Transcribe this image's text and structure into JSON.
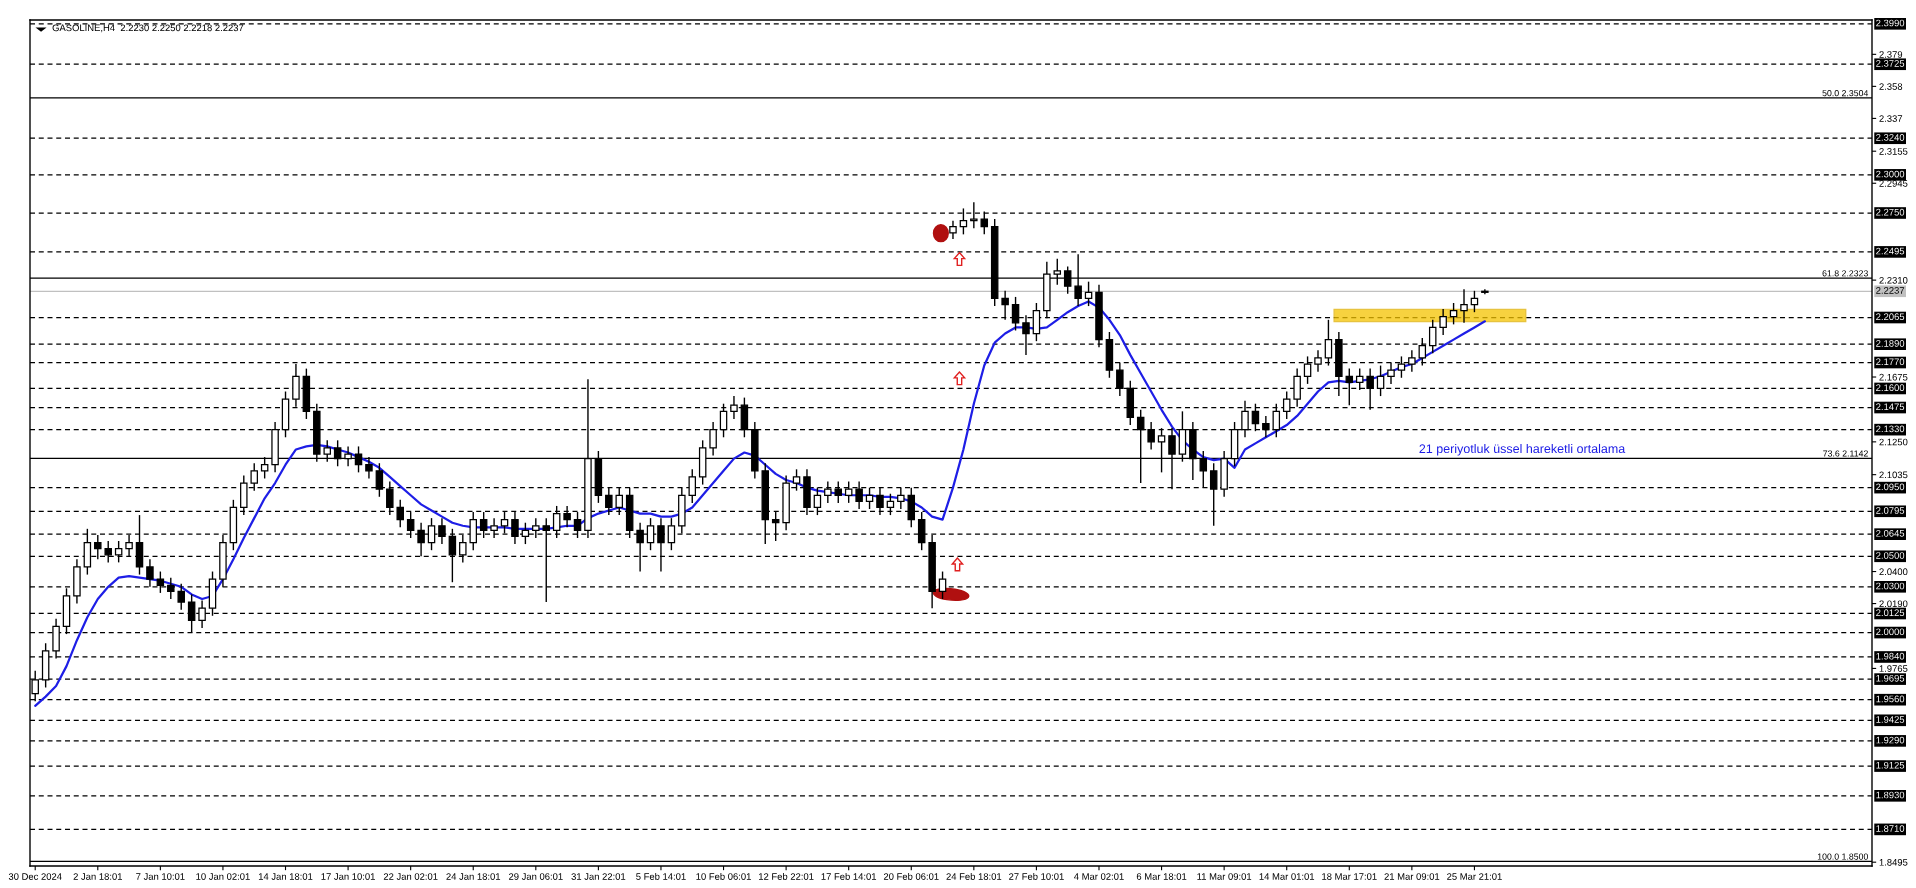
{
  "chart_data": {
    "type": "candlestick",
    "title": "GASOLINE,H4  2.2230 2.2250 2.2218 2.2237",
    "categories": [
      "30 Dec 2024",
      null,
      null,
      null,
      null,
      null,
      "2 Jan 18:01",
      null,
      null,
      null,
      null,
      null,
      "7 Jan 10:01",
      null,
      null,
      null,
      null,
      null,
      "10 Jan 02:01",
      null,
      null,
      null,
      null,
      null,
      "14 Jan 18:01",
      null,
      null,
      null,
      null,
      null,
      "17 Jan 10:01",
      null,
      null,
      null,
      null,
      null,
      "22 Jan 02:01",
      null,
      null,
      null,
      null,
      null,
      "24 Jan 18:01",
      null,
      null,
      null,
      null,
      null,
      "29 Jan 06:01",
      null,
      null,
      null,
      null,
      null,
      "31 Jan 22:01",
      null,
      null,
      null,
      null,
      null,
      "5 Feb 14:01",
      null,
      null,
      null,
      null,
      null,
      "10 Feb 06:01",
      null,
      null,
      null,
      null,
      null,
      "12 Feb 22:01",
      null,
      null,
      null,
      null,
      null,
      "17 Feb 14:01",
      null,
      null,
      null,
      null,
      null,
      "20 Feb 06:01",
      null,
      null,
      null,
      null,
      null,
      "24 Feb 18:01",
      null,
      null,
      null,
      null,
      null,
      "27 Feb 10:01",
      null,
      null,
      null,
      null,
      null,
      "4 Mar 02:01",
      null,
      null,
      null,
      null,
      null,
      "6 Mar 18:01",
      null,
      null,
      null,
      null,
      null,
      "11 Mar 09:01",
      null,
      null,
      null,
      null,
      null,
      "14 Mar 01:01",
      null,
      null,
      null,
      null,
      null,
      "18 Mar 17:01",
      null,
      null,
      null,
      null,
      null,
      "21 Mar 09:01",
      null,
      null,
      null,
      null,
      null,
      "25 Mar 21:01",
      null
    ],
    "ohlc": [
      [
        1.96,
        1.975,
        1.955,
        1.969
      ],
      [
        1.969,
        1.993,
        1.964,
        1.988
      ],
      [
        1.988,
        2.009,
        1.983,
        2.004
      ],
      [
        2.004,
        2.029,
        1.999,
        2.024
      ],
      [
        2.024,
        2.048,
        2.019,
        2.043
      ],
      [
        2.043,
        2.068,
        2.038,
        2.059
      ],
      [
        2.059,
        2.064,
        2.048,
        2.055
      ],
      [
        2.055,
        2.06,
        2.046,
        2.051
      ],
      [
        2.051,
        2.06,
        2.046,
        2.055
      ],
      [
        2.055,
        2.064,
        2.05,
        2.059
      ],
      [
        2.059,
        2.077,
        2.038,
        2.043
      ],
      [
        2.043,
        2.048,
        2.03,
        2.035
      ],
      [
        2.035,
        2.04,
        2.026,
        2.031
      ],
      [
        2.031,
        2.036,
        2.022,
        2.027
      ],
      [
        2.027,
        2.032,
        2.015,
        2.02
      ],
      [
        2.02,
        2.025,
        2.0,
        2.008
      ],
      [
        2.008,
        2.021,
        2.003,
        2.016
      ],
      [
        2.016,
        2.04,
        2.011,
        2.035
      ],
      [
        2.035,
        2.064,
        2.03,
        2.059
      ],
      [
        2.059,
        2.087,
        2.054,
        2.082
      ],
      [
        2.082,
        2.103,
        2.077,
        2.098
      ],
      [
        2.098,
        2.111,
        2.093,
        2.106
      ],
      [
        2.106,
        2.115,
        2.101,
        2.11
      ],
      [
        2.11,
        2.138,
        2.105,
        2.133
      ],
      [
        2.133,
        2.158,
        2.128,
        2.153
      ],
      [
        2.153,
        2.176,
        2.148,
        2.168
      ],
      [
        2.168,
        2.173,
        2.14,
        2.145
      ],
      [
        2.145,
        2.15,
        2.112,
        2.117
      ],
      [
        2.117,
        2.126,
        2.112,
        2.121
      ],
      [
        2.121,
        2.126,
        2.109,
        2.114
      ],
      [
        2.114,
        2.122,
        2.109,
        2.117
      ],
      [
        2.117,
        2.122,
        2.105,
        2.11
      ],
      [
        2.11,
        2.115,
        2.101,
        2.106
      ],
      [
        2.106,
        2.111,
        2.089,
        2.094
      ],
      [
        2.094,
        2.099,
        2.077,
        2.082
      ],
      [
        2.082,
        2.087,
        2.069,
        2.074
      ],
      [
        2.074,
        2.079,
        2.062,
        2.067
      ],
      [
        2.067,
        2.072,
        2.05,
        2.059
      ],
      [
        2.059,
        2.075,
        2.054,
        2.07
      ],
      [
        2.07,
        2.075,
        2.058,
        2.063
      ],
      [
        2.063,
        2.068,
        2.033,
        2.051
      ],
      [
        2.051,
        2.064,
        2.046,
        2.059
      ],
      [
        2.059,
        2.079,
        2.054,
        2.074
      ],
      [
        2.074,
        2.079,
        2.062,
        2.067
      ],
      [
        2.067,
        2.075,
        2.062,
        2.07
      ],
      [
        2.07,
        2.079,
        2.065,
        2.074
      ],
      [
        2.074,
        2.079,
        2.058,
        2.063
      ],
      [
        2.063,
        2.072,
        2.058,
        2.067
      ],
      [
        2.067,
        2.075,
        2.062,
        2.07
      ],
      [
        2.07,
        2.075,
        2.02,
        2.067
      ],
      [
        2.067,
        2.083,
        2.062,
        2.078
      ],
      [
        2.078,
        2.083,
        2.069,
        2.074
      ],
      [
        2.074,
        2.079,
        2.062,
        2.067
      ],
      [
        2.067,
        2.166,
        2.062,
        2.114
      ],
      [
        2.114,
        2.119,
        2.085,
        2.09
      ],
      [
        2.09,
        2.095,
        2.077,
        2.082
      ],
      [
        2.082,
        2.095,
        2.077,
        2.09
      ],
      [
        2.09,
        2.095,
        2.062,
        2.067
      ],
      [
        2.067,
        2.072,
        2.04,
        2.059
      ],
      [
        2.059,
        2.075,
        2.054,
        2.07
      ],
      [
        2.07,
        2.075,
        2.04,
        2.059
      ],
      [
        2.059,
        2.075,
        2.054,
        2.07
      ],
      [
        2.07,
        2.095,
        2.065,
        2.09
      ],
      [
        2.09,
        2.107,
        2.085,
        2.102
      ],
      [
        2.102,
        2.126,
        2.097,
        2.121
      ],
      [
        2.121,
        2.138,
        2.116,
        2.133
      ],
      [
        2.133,
        2.15,
        2.128,
        2.145
      ],
      [
        2.145,
        2.155,
        2.14,
        2.149
      ],
      [
        2.149,
        2.154,
        2.128,
        2.133
      ],
      [
        2.133,
        2.138,
        2.101,
        2.106
      ],
      [
        2.106,
        2.111,
        2.058,
        2.074
      ],
      [
        2.074,
        2.079,
        2.06,
        2.072
      ],
      [
        2.072,
        2.103,
        2.067,
        2.098
      ],
      [
        2.098,
        2.107,
        2.093,
        2.102
      ],
      [
        2.102,
        2.107,
        2.077,
        2.082
      ],
      [
        2.082,
        2.095,
        2.077,
        2.09
      ],
      [
        2.09,
        2.099,
        2.085,
        2.094
      ],
      [
        2.094,
        2.099,
        2.085,
        2.09
      ],
      [
        2.09,
        2.099,
        2.085,
        2.094
      ],
      [
        2.094,
        2.099,
        2.081,
        2.086
      ],
      [
        2.086,
        2.095,
        2.081,
        2.09
      ],
      [
        2.09,
        2.095,
        2.077,
        2.082
      ],
      [
        2.082,
        2.091,
        2.077,
        2.086
      ],
      [
        2.086,
        2.095,
        2.081,
        2.09
      ],
      [
        2.09,
        2.095,
        2.069,
        2.074
      ],
      [
        2.074,
        2.079,
        2.054,
        2.059
      ],
      [
        2.059,
        2.064,
        2.016,
        2.027
      ],
      [
        2.027,
        2.04,
        2.022,
        2.035
      ],
      [
        2.262,
        2.27,
        2.258,
        2.266
      ],
      [
        2.266,
        2.278,
        2.261,
        2.27
      ],
      [
        2.27,
        2.282,
        2.265,
        2.271
      ],
      [
        2.271,
        2.276,
        2.261,
        2.266
      ],
      [
        2.266,
        2.271,
        2.214,
        2.219
      ],
      [
        2.219,
        2.224,
        2.205,
        2.215
      ],
      [
        2.215,
        2.22,
        2.198,
        2.203
      ],
      [
        2.203,
        2.208,
        2.182,
        2.196
      ],
      [
        2.196,
        2.216,
        2.191,
        2.211
      ],
      [
        2.211,
        2.243,
        2.206,
        2.235
      ],
      [
        2.235,
        2.245,
        2.228,
        2.237
      ],
      [
        2.237,
        2.24,
        2.222,
        2.227
      ],
      [
        2.227,
        2.248,
        2.214,
        2.219
      ],
      [
        2.219,
        2.23,
        2.214,
        2.223
      ],
      [
        2.223,
        2.228,
        2.187,
        2.192
      ],
      [
        2.192,
        2.197,
        2.167,
        2.172
      ],
      [
        2.172,
        2.177,
        2.155,
        2.16
      ],
      [
        2.16,
        2.165,
        2.136,
        2.141
      ],
      [
        2.141,
        2.146,
        2.098,
        2.133
      ],
      [
        2.133,
        2.138,
        2.12,
        2.125
      ],
      [
        2.125,
        2.134,
        2.105,
        2.129
      ],
      [
        2.129,
        2.134,
        2.094,
        2.117
      ],
      [
        2.117,
        2.145,
        2.112,
        2.133
      ],
      [
        2.133,
        2.138,
        2.1,
        2.114
      ],
      [
        2.114,
        2.119,
        2.095,
        2.106
      ],
      [
        2.106,
        2.111,
        2.07,
        2.094
      ],
      [
        2.094,
        2.119,
        2.089,
        2.114
      ],
      [
        2.114,
        2.138,
        2.109,
        2.133
      ],
      [
        2.133,
        2.152,
        2.128,
        2.145
      ],
      [
        2.145,
        2.15,
        2.132,
        2.137
      ],
      [
        2.137,
        2.142,
        2.128,
        2.133
      ],
      [
        2.133,
        2.15,
        2.128,
        2.145
      ],
      [
        2.145,
        2.158,
        2.14,
        2.153
      ],
      [
        2.153,
        2.173,
        2.148,
        2.168
      ],
      [
        2.168,
        2.181,
        2.163,
        2.176
      ],
      [
        2.176,
        2.185,
        2.171,
        2.18
      ],
      [
        2.18,
        2.205,
        2.175,
        2.192
      ],
      [
        2.192,
        2.197,
        2.155,
        2.168
      ],
      [
        2.168,
        2.173,
        2.149,
        2.164
      ],
      [
        2.164,
        2.173,
        2.159,
        2.168
      ],
      [
        2.168,
        2.173,
        2.146,
        2.16
      ],
      [
        2.16,
        2.175,
        2.155,
        2.168
      ],
      [
        2.168,
        2.177,
        2.163,
        2.172
      ],
      [
        2.172,
        2.181,
        2.167,
        2.176
      ],
      [
        2.176,
        2.185,
        2.171,
        2.18
      ],
      [
        2.18,
        2.193,
        2.175,
        2.188
      ],
      [
        2.188,
        2.205,
        2.183,
        2.2
      ],
      [
        2.2,
        2.212,
        2.195,
        2.207
      ],
      [
        2.207,
        2.216,
        2.202,
        2.211
      ],
      [
        2.211,
        2.225,
        2.203,
        2.215
      ],
      [
        2.215,
        2.224,
        2.21,
        2.219
      ],
      [
        2.223,
        2.225,
        2.2218,
        2.2237
      ]
    ],
    "series": [
      {
        "type": "line",
        "name": "21 periyotluk üssel hareketli ortalama",
        "color": "#1e1ee6",
        "values": [
          1.952,
          1.958,
          1.965,
          1.978,
          1.995,
          2.01,
          2.022,
          2.03,
          2.036,
          2.037,
          2.036,
          2.035,
          2.034,
          2.032,
          2.03,
          2.025,
          2.022,
          2.024,
          2.035,
          2.048,
          2.062,
          2.075,
          2.088,
          2.098,
          2.11,
          2.12,
          2.122,
          2.123,
          2.122,
          2.12,
          2.118,
          2.115,
          2.112,
          2.108,
          2.102,
          2.096,
          2.09,
          2.084,
          2.08,
          2.076,
          2.072,
          2.07,
          2.069,
          2.069,
          2.069,
          2.069,
          2.068,
          2.068,
          2.068,
          2.068,
          2.069,
          2.07,
          2.07,
          2.075,
          2.078,
          2.08,
          2.082,
          2.08,
          2.078,
          2.078,
          2.076,
          2.076,
          2.078,
          2.082,
          2.09,
          2.098,
          2.106,
          2.114,
          2.118,
          2.116,
          2.11,
          2.104,
          2.1,
          2.098,
          2.095,
          2.093,
          2.092,
          2.091,
          2.09,
          2.09,
          2.09,
          2.089,
          2.089,
          2.088,
          2.086,
          2.082,
          2.076,
          2.074,
          2.095,
          2.12,
          2.15,
          2.175,
          2.19,
          2.196,
          2.2,
          2.2,
          2.199,
          2.2,
          2.205,
          2.21,
          2.214,
          2.217,
          2.213,
          2.205,
          2.195,
          2.182,
          2.17,
          2.158,
          2.146,
          2.135,
          2.126,
          2.12,
          2.115,
          2.113,
          2.114,
          2.108,
          2.12,
          2.124,
          2.128,
          2.132,
          2.136,
          2.142,
          2.15,
          2.158,
          2.164,
          2.165,
          2.164,
          2.165,
          2.166,
          2.168,
          2.171,
          2.174,
          2.176,
          2.18,
          2.184,
          2.188,
          2.192,
          2.196,
          2.2,
          2.204
        ]
      }
    ],
    "ylim": [
      1.847,
      2.4015
    ],
    "yticks": [
      2.379,
      2.358,
      2.337,
      {
        "value": 2.3155,
        "label": "2.3155"
      },
      {
        "value": 2.2945,
        "label": "2.2945"
      },
      {
        "value": 2.231,
        "label": "2.2310"
      },
      {
        "value": 2.1675,
        "label": "2.1675"
      },
      {
        "value": 2.125,
        "label": "2.1250"
      },
      {
        "value": 2.1035,
        "label": "2.1035"
      },
      {
        "value": 2.04,
        "label": "2.0400"
      },
      {
        "value": 2.019,
        "label": "2.0190"
      },
      {
        "value": 1.9765,
        "label": "1.9765"
      },
      {
        "value": 1.8495,
        "label": "1.8495"
      }
    ],
    "ref_lines": [
      {
        "axis": "y",
        "value": 2.399,
        "label": "2.3990",
        "line_style": "dashed",
        "color": "#000000"
      },
      {
        "axis": "y",
        "value": 2.3725,
        "label": "2.3725",
        "line_style": "dashed",
        "color": "#000000"
      },
      {
        "axis": "y",
        "value": 2.324,
        "label": "2.3240",
        "line_style": "dashed",
        "color": "#000000"
      },
      {
        "axis": "y",
        "value": 2.3,
        "label": "2.3000",
        "line_style": "dashed",
        "color": "#000000"
      },
      {
        "axis": "y",
        "value": 2.275,
        "label": "2.2750",
        "line_style": "dashed",
        "color": "#000000"
      },
      {
        "axis": "y",
        "value": 2.2495,
        "label": "2.2495",
        "line_style": "dashed",
        "color": "#000000"
      },
      {
        "axis": "y",
        "value": 2.2065,
        "label": "2.2065",
        "line_style": "dashed",
        "color": "#000000"
      },
      {
        "axis": "y",
        "value": 2.189,
        "label": "2.1890",
        "line_style": "dashed",
        "color": "#000000"
      },
      {
        "axis": "y",
        "value": 2.177,
        "label": "2.1770",
        "line_style": "dashed",
        "color": "#000000"
      },
      {
        "axis": "y",
        "value": 2.16,
        "label": "2.1600",
        "line_style": "dashed",
        "color": "#000000"
      },
      {
        "axis": "y",
        "value": 2.1475,
        "label": "2.1475",
        "line_style": "dashed",
        "color": "#000000"
      },
      {
        "axis": "y",
        "value": 2.133,
        "label": "2.1330",
        "line_style": "dashed",
        "color": "#000000"
      },
      {
        "axis": "y",
        "value": 2.095,
        "label": "2.0950",
        "line_style": "dashed",
        "color": "#000000"
      },
      {
        "axis": "y",
        "value": 2.0795,
        "label": "2.0795",
        "line_style": "dashed",
        "color": "#000000"
      },
      {
        "axis": "y",
        "value": 2.0645,
        "label": "2.0645",
        "line_style": "dashed",
        "color": "#000000"
      },
      {
        "axis": "y",
        "value": 2.05,
        "label": "2.0500",
        "line_style": "dashed",
        "color": "#000000"
      },
      {
        "axis": "y",
        "value": 2.03,
        "label": "2.0300",
        "line_style": "dashed",
        "color": "#000000"
      },
      {
        "axis": "y",
        "value": 2.0125,
        "label": "2.0125",
        "line_style": "dashed",
        "color": "#000000"
      },
      {
        "axis": "y",
        "value": 2.0,
        "label": "2.0000",
        "line_style": "dashed",
        "color": "#000000"
      },
      {
        "axis": "y",
        "value": 1.984,
        "label": "1.9840",
        "line_style": "dashed",
        "color": "#000000"
      },
      {
        "axis": "y",
        "value": 1.9695,
        "label": "1.9695",
        "line_style": "dashed",
        "color": "#000000"
      },
      {
        "axis": "y",
        "value": 1.956,
        "label": "1.9560",
        "line_style": "dashed",
        "color": "#000000"
      },
      {
        "axis": "y",
        "value": 1.9425,
        "label": "1.9425",
        "line_style": "dashed",
        "color": "#000000"
      },
      {
        "axis": "y",
        "value": 1.929,
        "label": "1.9290",
        "line_style": "dashed",
        "color": "#000000"
      },
      {
        "axis": "y",
        "value": 1.9125,
        "label": "1.9125",
        "line_style": "dashed",
        "color": "#000000"
      },
      {
        "axis": "y",
        "value": 1.893,
        "label": "1.8930",
        "line_style": "dashed",
        "color": "#000000"
      },
      {
        "axis": "y",
        "value": 1.871,
        "label": "1.8710",
        "line_style": "dashed",
        "color": "#000000"
      },
      {
        "axis": "y",
        "value": 2.2237,
        "label": "2.2237",
        "line_style": "solid",
        "color": "#c0c0c0"
      },
      {
        "axis": "y",
        "value": 2.3504,
        "label": "50.0 2.3504",
        "line_style": "solid",
        "color": "#000000"
      },
      {
        "axis": "y",
        "value": 2.2323,
        "label": "61.8 2.2323",
        "line_style": "solid",
        "color": "#000000"
      },
      {
        "axis": "y",
        "value": 2.1142,
        "label": "73.6 2.1142",
        "line_style": "solid",
        "color": "#000000"
      },
      {
        "axis": "y",
        "value": 1.85,
        "label": "100.0 1.8500",
        "line_style": "solid",
        "color": "#000000"
      }
    ]
  }
}
